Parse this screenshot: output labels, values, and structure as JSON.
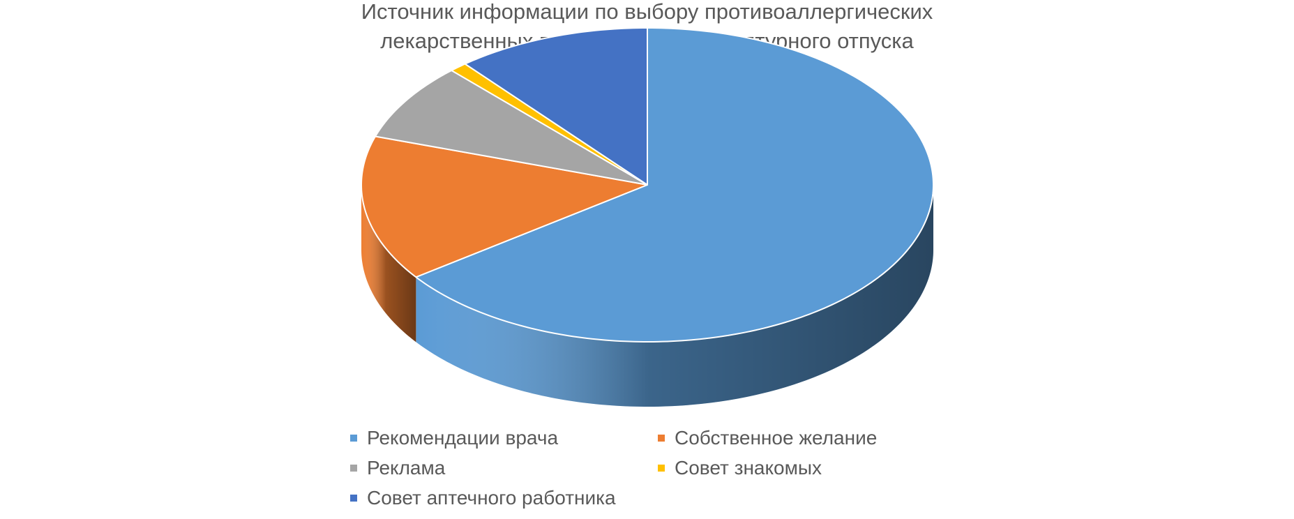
{
  "chart_data": {
    "type": "pie",
    "style": "3d",
    "title_lines": [
      "Источник  информации по выбору противоаллергических",
      "лекарственных препаратов безрецептурного отпуска"
    ],
    "legend_position": "bottom",
    "slices": [
      {
        "label": "Рекомендации врача",
        "value": 65,
        "color": "#5B9BD5"
      },
      {
        "label": "Собственное желание",
        "value": 15,
        "color": "#ED7D31"
      },
      {
        "label": "Реклама",
        "value": 8,
        "color": "#A5A5A5"
      },
      {
        "label": "Совет знакомых",
        "value": 1,
        "color": "#FFC000"
      },
      {
        "label": "Совет аптечного работника",
        "value": 11,
        "color": "#4472C4"
      }
    ]
  }
}
